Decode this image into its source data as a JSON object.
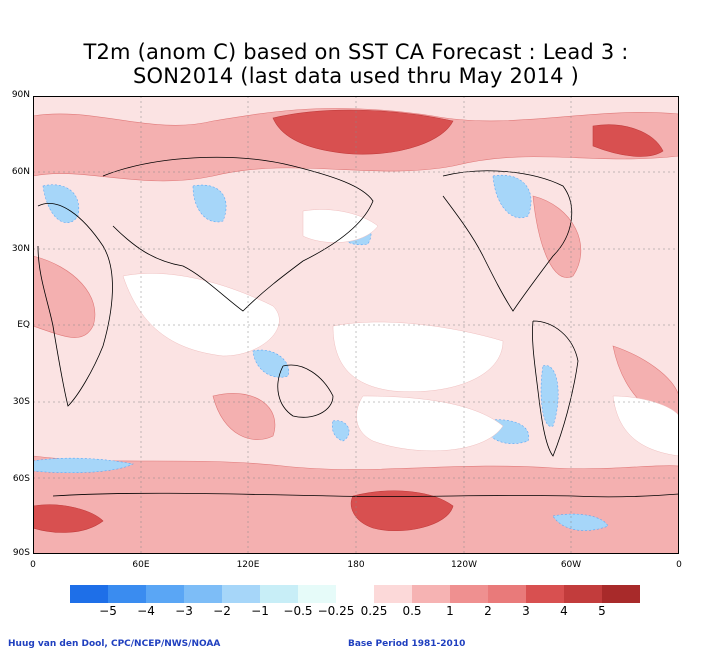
{
  "title": {
    "line1": "T2m (anom C) based on SST CA Forecast : Lead 3 :",
    "line2": "SON2014 (last data used thru May 2014 )"
  },
  "axes": {
    "y_ticks": [
      "90N",
      "60N",
      "30N",
      "EQ",
      "30S",
      "60S",
      "90S"
    ],
    "x_ticks": [
      "0",
      "60E",
      "120E",
      "180",
      "120W",
      "60W",
      "0"
    ]
  },
  "legend": {
    "labels": [
      "−5",
      "−4",
      "−3",
      "−2",
      "−1",
      "−0.5",
      "−0.25",
      "0.25",
      "0.5",
      "1",
      "2",
      "3",
      "4",
      "5"
    ],
    "colors": [
      "#1e6fe8",
      "#3a8cf0",
      "#5aa6f5",
      "#7dbdf7",
      "#a6d6f9",
      "#c8eef7",
      "#e6fbf9",
      "#ffffff",
      "#fcd9d9",
      "#f6b3b3",
      "#ef9090",
      "#e97a7a",
      "#d85050",
      "#c23c3c",
      "#a82a2a"
    ]
  },
  "credits": {
    "left": "Huug van den Dool, CPC/NCEP/NWS/NOAA",
    "right": "Base Period 1981-2010"
  }
}
